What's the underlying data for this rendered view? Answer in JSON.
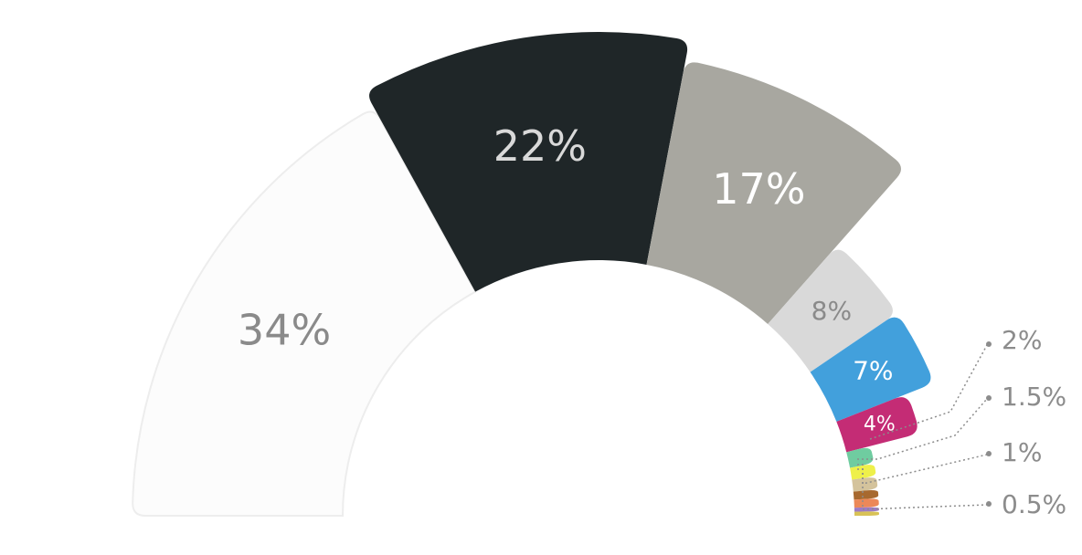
{
  "chart_data": {
    "type": "pie",
    "variant": "half-donut-radial",
    "slices": [
      {
        "label": "34%",
        "value": 34,
        "color": "#fcfcfc",
        "text_color": "#8a8a8a"
      },
      {
        "label": "22%",
        "value": 22,
        "color": "#1f2628",
        "text_color": "#d9d9d9"
      },
      {
        "label": "17%",
        "value": 17,
        "color": "#a8a7a0",
        "text_color": "#ffffff"
      },
      {
        "label": "8%",
        "value": 8,
        "color": "#d9d9d9",
        "text_color": "#8a8a8a"
      },
      {
        "label": "7%",
        "value": 7,
        "color": "#42a0dc",
        "text_color": "#ffffff"
      },
      {
        "label": "4%",
        "value": 4,
        "color": "#c42c75",
        "text_color": "#ffffff"
      },
      {
        "label": "2%",
        "value": 2,
        "color": "#6fcca0",
        "text_color": null
      },
      {
        "label": "1.5%",
        "value": 1.5,
        "color": "#eef04a",
        "text_color": null
      },
      {
        "label": "1.5%",
        "value": 1.5,
        "color": "#d4c39c",
        "text_color": null
      },
      {
        "label": "1%",
        "value": 1,
        "color": "#a7692f",
        "text_color": null
      },
      {
        "label": "1%",
        "value": 1,
        "color": "#ec8858",
        "text_color": null
      },
      {
        "label": "0.5%",
        "value": 0.5,
        "color": "#9d7bc5",
        "text_color": null
      },
      {
        "label": "0.5%",
        "value": 0.5,
        "color": "#d8c256",
        "text_color": null
      }
    ],
    "callouts": [
      "2%",
      "1.5%",
      "1%",
      "0.5%"
    ]
  }
}
